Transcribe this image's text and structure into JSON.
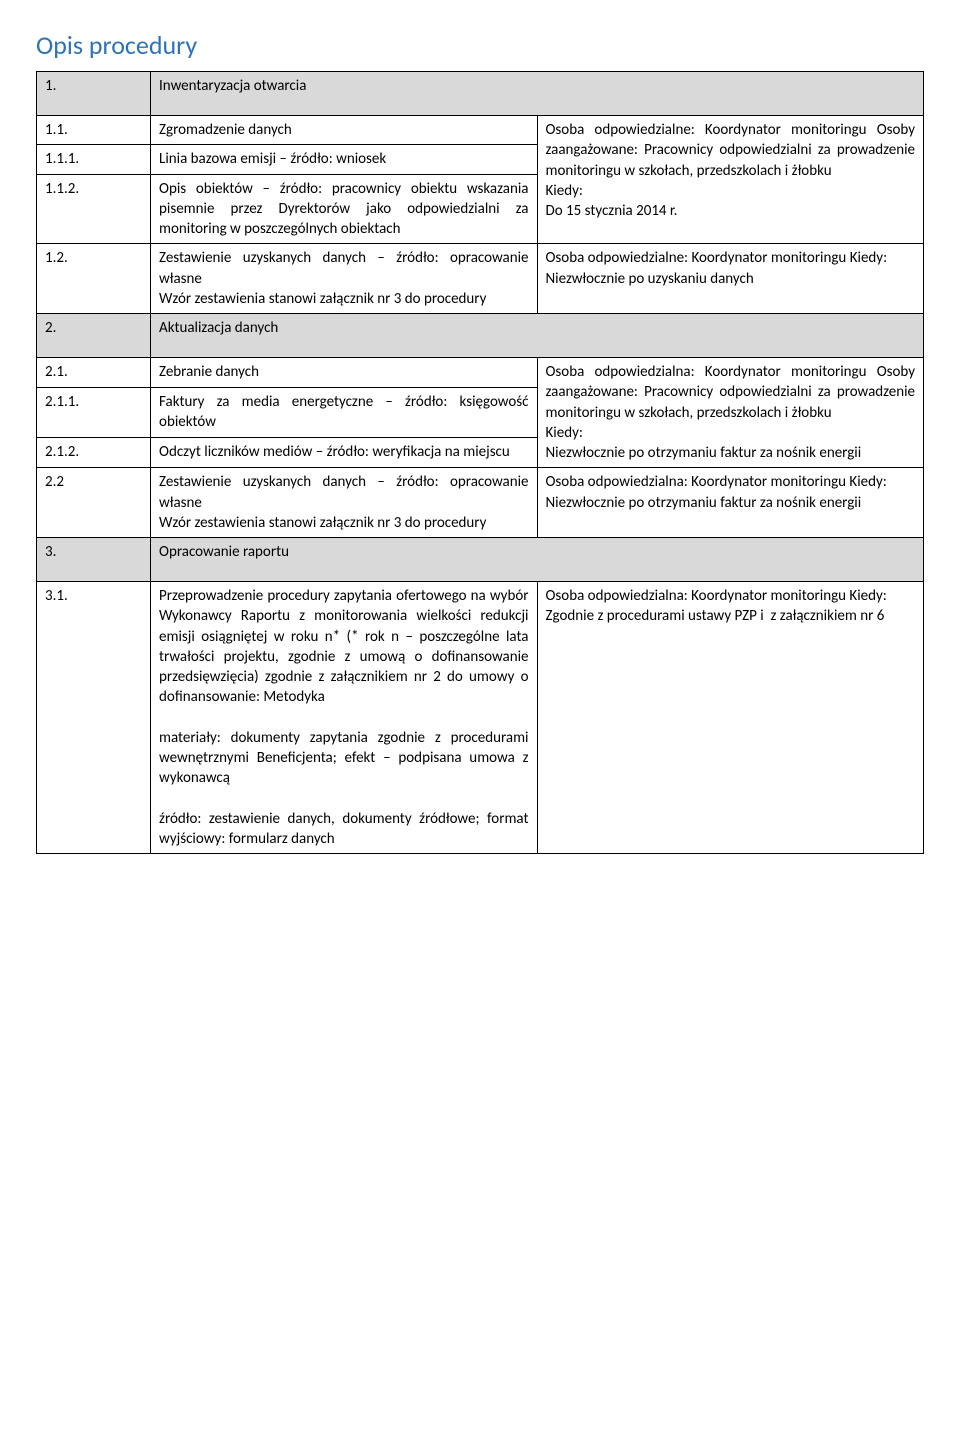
{
  "title": {
    "text": "Opis procedury",
    "color": "#2e74b5",
    "fontsize": 26
  },
  "colors": {
    "section_bg": "#d9d9d9",
    "border": "#000000",
    "text": "#000000"
  },
  "rows": [
    {
      "type": "section",
      "num": "1.",
      "desc": "Inwentaryzacja otwarcia"
    },
    {
      "type": "row",
      "num": "1.1.",
      "desc": "Zgromadzenie danych",
      "right_rowspan": 3,
      "right": "Osoba odpowiedzialne: Koordynator monitoringu Osoby zaangażowane: Pracownicy odpowiedzialni za prowadzenie monitoringu w szkołach, przedszkolach i żłobku\nKiedy:\nDo 15 stycznia 2014 r."
    },
    {
      "type": "rowcont",
      "num": "1.1.1.",
      "desc": "Linia bazowa emisji – źródło: wniosek"
    },
    {
      "type": "rowcont",
      "num": "1.1.2.",
      "desc": "Opis obiektów – źródło: pracownicy obiektu wskazania pisemnie przez Dyrektorów jako odpowiedzialni za monitoring w poszczególnych obiektach"
    },
    {
      "type": "row",
      "num": "1.2.",
      "desc": "Zestawienie uzyskanych danych – źródło: opracowanie własne\nWzór zestawienia stanowi załącznik nr 3 do procedury",
      "right": "Osoba odpowiedzialne: Koordynator monitoringu Kiedy:\nNiezwłocznie po uzyskaniu danych"
    },
    {
      "type": "section",
      "num": "2.",
      "desc": "Aktualizacja danych"
    },
    {
      "type": "row",
      "num": "2.1.",
      "desc": "Zebranie danych",
      "right_rowspan": 3,
      "right": "Osoba odpowiedzialna: Koordynator monitoringu Osoby zaangażowane: Pracownicy odpowiedzialni za prowadzenie monitoringu w szkołach, przedszkolach i żłobku\nKiedy:\nNiezwłocznie po otrzymaniu faktur za nośnik energii"
    },
    {
      "type": "rowcont",
      "num": "2.1.1.",
      "desc": "Faktury za media energetyczne – źródło: księgowość obiektów"
    },
    {
      "type": "rowcont",
      "num": "2.1.2.",
      "desc": "Odczyt liczników mediów – źródło: weryfikacja na miejscu"
    },
    {
      "type": "row",
      "num": "2.2",
      "desc": "Zestawienie uzyskanych danych – źródło: opracowanie własne\nWzór zestawienia stanowi załącznik nr 3 do procedury",
      "right": "Osoba odpowiedzialna: Koordynator monitoringu Kiedy:\nNiezwłocznie po otrzymaniu faktur za nośnik energii"
    },
    {
      "type": "section",
      "num": "3.",
      "desc": "Opracowanie raportu"
    },
    {
      "type": "row",
      "num": "3.1.",
      "desc": "Przeprowadzenie procedury zapytania ofertowego na wybór Wykonawcy Raportu z monitorowania wielkości redukcji emisji osiągniętej w roku n* (* rok n – poszczególne lata trwałości projektu, zgodnie z umową o dofinansowanie przedsięwzięcia) zgodnie z załącznikiem nr 2 do umowy o dofinansowanie: Metodyka\n\nmateriały: dokumenty zapytania zgodnie z procedurami wewnętrznymi Beneficjenta; efekt – podpisana umowa z wykonawcą\n\nźródło: zestawienie danych, dokumenty źródłowe; format wyjściowy: formularz danych",
      "right": "Osoba odpowiedzialna: Koordynator monitoringu Kiedy:\nZgodnie z procedurami ustawy PZP i  z załącznikiem nr 6"
    }
  ]
}
